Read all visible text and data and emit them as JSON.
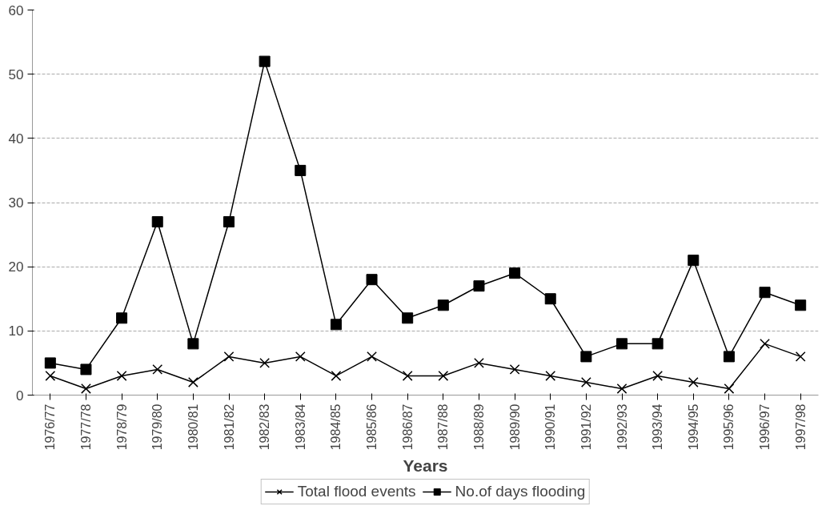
{
  "chart_data": {
    "type": "line",
    "xlabel": "Years",
    "categories": [
      "1976/77",
      "1977/78",
      "1978/79",
      "1979/80",
      "1980/81",
      "1981/82",
      "1982/83",
      "1983/84",
      "1984/85",
      "1985/86",
      "1986/87",
      "1987/88",
      "1988/89",
      "1989/90",
      "1990/91",
      "1991/92",
      "1992/93",
      "1993/94",
      "1994/95",
      "1995/96",
      "1996/97",
      "1997/98"
    ],
    "series": [
      {
        "name": "Total flood events",
        "color": "#000000",
        "marker": "cross",
        "values": [
          3,
          1,
          3,
          4,
          2,
          6,
          5,
          6,
          3,
          6,
          3,
          3,
          5,
          4,
          3,
          2,
          1,
          3,
          2,
          1,
          8,
          6
        ]
      },
      {
        "name": "No.of days flooding",
        "color": "#000000",
        "marker": "square",
        "values": [
          5,
          4,
          12,
          27,
          8,
          27,
          52,
          35,
          11,
          18,
          12,
          14,
          17,
          19,
          15,
          6,
          8,
          8,
          21,
          6,
          16,
          14
        ]
      }
    ],
    "ylim": [
      0,
      60
    ],
    "yticks": [
      0,
      10,
      20,
      30,
      40,
      50,
      60
    ],
    "grid": "y",
    "legend": "bottom",
    "line_style": "solid"
  }
}
